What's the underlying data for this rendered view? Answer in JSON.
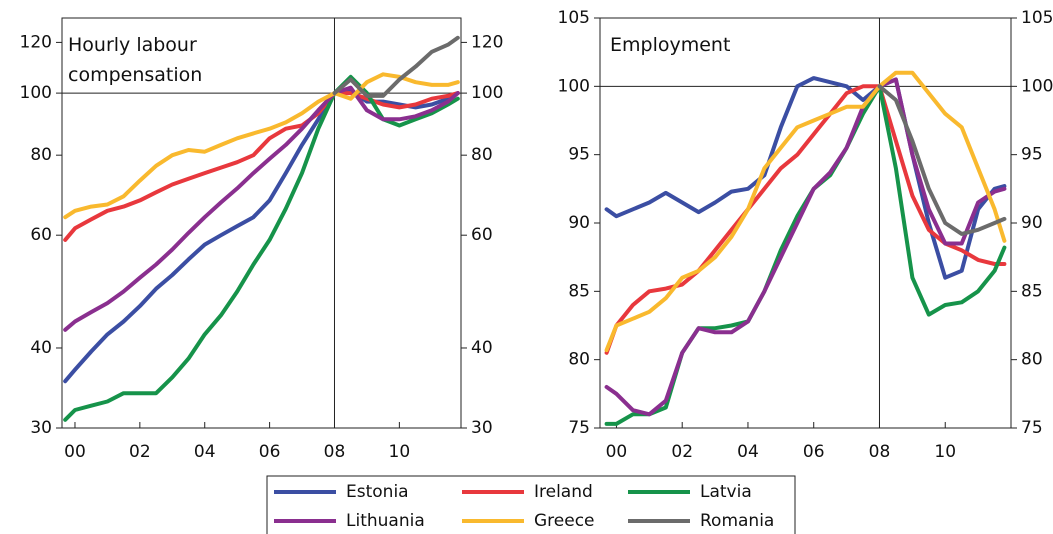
{
  "chart_data": [
    {
      "type": "line",
      "title": "Hourly labour compensation",
      "log_scale": true,
      "x": [
        1999.7,
        2000,
        2000.5,
        2001,
        2001.5,
        2002,
        2002.5,
        2003,
        2003.5,
        2004,
        2004.5,
        2005,
        2005.5,
        2006,
        2006.5,
        2007,
        2007.5,
        2008,
        2008.5,
        2009,
        2009.5,
        2010,
        2010.5,
        2011,
        2011.5,
        2011.8
      ],
      "xlim": [
        1999.6,
        2011.9
      ],
      "xticks": [
        {
          "value": 2000,
          "label": "00"
        },
        {
          "value": 2002,
          "label": "02"
        },
        {
          "value": 2004,
          "label": "04"
        },
        {
          "value": 2006,
          "label": "06"
        },
        {
          "value": 2008,
          "label": "08"
        },
        {
          "value": 2010,
          "label": "10"
        }
      ],
      "ylim": [
        30,
        131
      ],
      "yticks": [
        30,
        40,
        60,
        80,
        100,
        120
      ],
      "reference_x": 2008,
      "reference_y": 100,
      "series": [
        {
          "name": "Estonia",
          "color": "#3b4ea3",
          "values": [
            35.5,
            37,
            39.5,
            42,
            44,
            46.5,
            49.5,
            52,
            55,
            58,
            60,
            62,
            64,
            68,
            75,
            83,
            91,
            100,
            101,
            97,
            97,
            96,
            95,
            96,
            98,
            100
          ]
        },
        {
          "name": "Ireland",
          "color": "#e8383d",
          "values": [
            59,
            61.5,
            63.5,
            65.5,
            66.5,
            68,
            70,
            72,
            73.5,
            75,
            76.5,
            78,
            80,
            85,
            88,
            89,
            93,
            100,
            100,
            98,
            96,
            95,
            96,
            98,
            99,
            100
          ]
        },
        {
          "name": "Latvia",
          "color": "#16934a",
          "values": [
            30.9,
            32,
            32.5,
            33,
            34,
            34,
            34,
            36,
            38.5,
            42,
            45,
            49,
            54,
            59,
            66,
            75,
            88,
            100,
            106,
            100,
            91,
            89,
            91,
            93,
            96,
            98
          ]
        },
        {
          "name": "Lithuania",
          "color": "#8a2f8f",
          "values": [
            42.7,
            44,
            45.5,
            47,
            49,
            51.5,
            54,
            57,
            60.5,
            64,
            67.5,
            71,
            75,
            79,
            83,
            88,
            94,
            100,
            102,
            94,
            91,
            91,
            92,
            94,
            97,
            100
          ]
        },
        {
          "name": "Greece",
          "color": "#f9b92e",
          "values": [
            64,
            65.5,
            66.5,
            67,
            69,
            73,
            77,
            80,
            81.5,
            81,
            83,
            85,
            86.5,
            88,
            90,
            93,
            97,
            100,
            98,
            104,
            107,
            106,
            104,
            103,
            103,
            104
          ]
        },
        {
          "name": "Romania",
          "color": "#6b6b6b",
          "values": [
            null,
            null,
            null,
            null,
            null,
            null,
            null,
            null,
            null,
            null,
            null,
            null,
            null,
            null,
            null,
            null,
            null,
            100,
            105,
            99,
            99,
            105,
            110,
            116,
            119,
            122
          ]
        }
      ]
    },
    {
      "type": "line",
      "title": "Employment",
      "log_scale": false,
      "x": [
        1999.7,
        2000,
        2000.5,
        2001,
        2001.5,
        2002,
        2002.5,
        2003,
        2003.5,
        2004,
        2004.5,
        2005,
        2005.5,
        2006,
        2006.5,
        2007,
        2007.5,
        2008,
        2008.5,
        2009,
        2009.5,
        2010,
        2010.5,
        2011,
        2011.5,
        2011.8
      ],
      "xlim": [
        1999.5,
        2012
      ],
      "xticks": [
        {
          "value": 2000,
          "label": "00"
        },
        {
          "value": 2002,
          "label": "02"
        },
        {
          "value": 2004,
          "label": "04"
        },
        {
          "value": 2006,
          "label": "06"
        },
        {
          "value": 2008,
          "label": "08"
        },
        {
          "value": 2010,
          "label": "10"
        }
      ],
      "ylim": [
        75,
        105
      ],
      "yticks": [
        75,
        80,
        85,
        90,
        95,
        100,
        105
      ],
      "reference_x": 2008,
      "reference_y": 100,
      "series": [
        {
          "color": "#3b4ea3",
          "values": [
            91,
            90.5,
            91,
            91.5,
            92.2,
            91.5,
            90.8,
            91.5,
            92.3,
            92.5,
            93.5,
            97,
            100,
            100.6,
            100.3,
            100,
            99,
            100,
            100.5,
            95,
            90,
            86,
            86.5,
            91,
            92.5,
            92.7
          ]
        },
        {
          "color": "#e8383d",
          "values": [
            80.5,
            82.5,
            84,
            85,
            85.2,
            85.5,
            86.5,
            88,
            89.5,
            91,
            92.5,
            94,
            95,
            96.5,
            98,
            99.5,
            100,
            100,
            96,
            92,
            89.5,
            88.5,
            88,
            87.3,
            87,
            87
          ]
        },
        {
          "color": "#16934a",
          "values": [
            75.3,
            75.3,
            76,
            76,
            76.5,
            80.5,
            82.3,
            82.3,
            82.5,
            82.8,
            85,
            88,
            90.5,
            92.5,
            93.5,
            95.5,
            98,
            100,
            94,
            86,
            83.3,
            84,
            84.2,
            85,
            86.5,
            88.2
          ]
        },
        {
          "color": "#8a2f8f",
          "values": [
            78,
            77.5,
            76.3,
            76,
            77,
            80.5,
            82.3,
            82,
            82,
            82.8,
            85,
            87.5,
            90,
            92.5,
            93.7,
            95.5,
            98.5,
            100,
            100.5,
            95,
            91,
            88.5,
            88.5,
            91.5,
            92.3,
            92.5
          ]
        },
        {
          "color": "#f9b92e",
          "values": [
            80.7,
            82.5,
            83,
            83.5,
            84.5,
            86,
            86.5,
            87.5,
            89,
            91,
            94,
            95.5,
            97,
            97.5,
            98,
            98.5,
            98.5,
            100,
            101,
            101,
            99.5,
            98,
            97,
            94,
            91,
            88.7
          ]
        },
        {
          "color": "#6b6b6b",
          "values": [
            null,
            null,
            null,
            null,
            null,
            null,
            null,
            null,
            null,
            null,
            null,
            null,
            null,
            null,
            null,
            null,
            null,
            100,
            99,
            96,
            92.5,
            90,
            89.2,
            89.5,
            90,
            90.3
          ]
        }
      ]
    }
  ]
}
